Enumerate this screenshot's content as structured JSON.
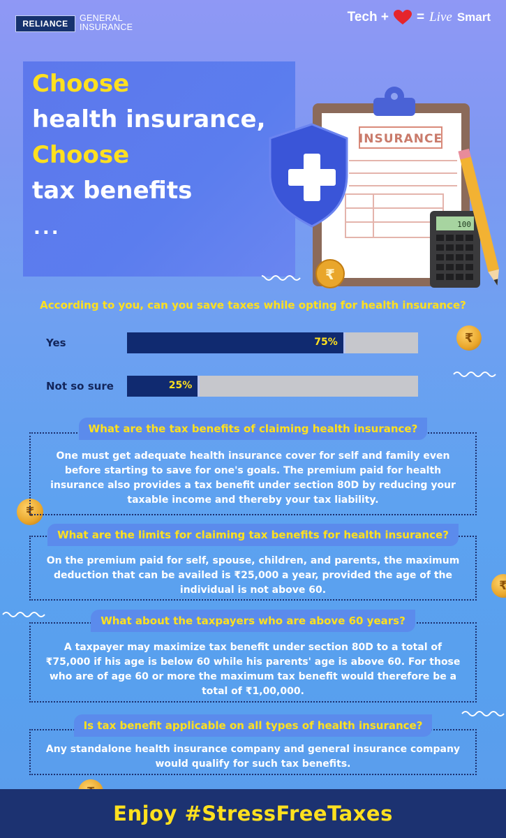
{
  "header": {
    "logo_text": "RELIANCE",
    "logo_sub_line1": "GENERAL",
    "logo_sub_line2": "INSURANCE",
    "tagline_tech": "Tech +",
    "tagline_equals": "=",
    "tagline_live": "Live",
    "tagline_smart": "Smart"
  },
  "hero": {
    "line1": "Choose",
    "line2": "health insurance,",
    "line3": "Choose",
    "line4": "tax benefits",
    "dots": "...",
    "clipboard_label": "INSURANCE",
    "calculator_display": "100"
  },
  "poll": {
    "question": "According to you, can you save taxes while opting for health insurance?",
    "options": [
      {
        "label": "Yes",
        "value_text": "75%",
        "fraction": 0.75
      },
      {
        "label": "Not so sure",
        "value_text": "25%",
        "fraction": 0.25
      }
    ]
  },
  "faq": [
    {
      "question": "What are the tax benefits of claiming health insurance?",
      "answer": "One must get adequate health insurance cover for self and family even before starting to save for one's goals. The premium paid for health insurance also provides a tax benefit under section 80D by reducing your taxable income and thereby your tax liability."
    },
    {
      "question": "What are the limits for claiming tax benefits for health insurance?",
      "answer": "On the premium paid for self, spouse, children, and parents, the maximum deduction that can be availed is ₹25,000 a year, provided the age of the individual is not above 60."
    },
    {
      "question": "What about the taxpayers who are above 60 years?",
      "answer": "A taxpayer may maximize tax benefit under section 80D to a total of ₹75,000 if his age is below 60 while his parents' age is above 60. For those who are of age 60 or more the maximum tax benefit would therefore be a total of ₹1,00,000."
    },
    {
      "question": "Is tax benefit applicable on all types of health insurance?",
      "answer": "Any standalone health insurance company and general insurance company would qualify for such tax benefits."
    }
  ],
  "footer": {
    "text": "Enjoy #StressFreeTaxes"
  },
  "colors": {
    "accent_yellow": "#ffe01f",
    "navy": "#1c3271",
    "bar_fill": "#102a70",
    "bar_track": "#c6c7cc"
  },
  "icons": [
    "heart-icon",
    "shield-plus-icon",
    "clipboard-icon",
    "calculator-icon",
    "pencil-icon",
    "rupee-coin-icon"
  ]
}
